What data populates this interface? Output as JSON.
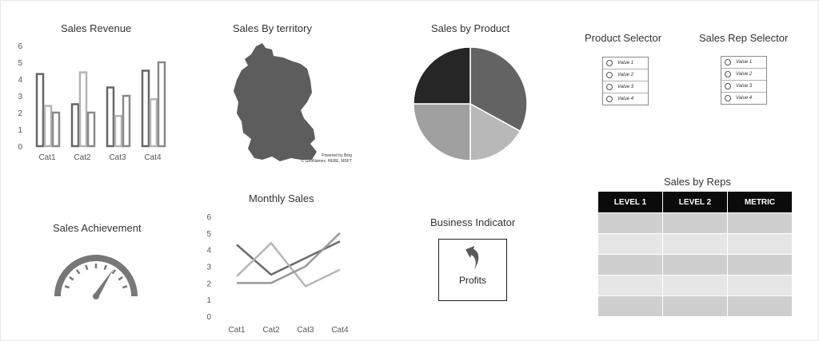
{
  "sales_revenue": {
    "title": "Sales Revenue"
  },
  "sales_by_territory": {
    "title": "Sales By territory",
    "attribution_line1": "Powered by Bing",
    "attribution_line2": "© GeoNames, HERE, MSFT"
  },
  "sales_by_product": {
    "title": "Sales by Product"
  },
  "product_selector": {
    "title": "Product Selector",
    "options": [
      "Value 1",
      "Value 2",
      "Value 3",
      "Value 4"
    ]
  },
  "sales_rep_selector": {
    "title": "Sales Rep Selector",
    "options": [
      "Value 1",
      "Value 2",
      "Value 3",
      "Value 4"
    ]
  },
  "sales_achievement": {
    "title": "Sales Achievement"
  },
  "monthly_sales": {
    "title": "Monthly Sales"
  },
  "business_indicator": {
    "title": "Business Indicator",
    "label": "Profits"
  },
  "sales_by_reps": {
    "title": "Sales by Reps",
    "columns": [
      "LEVEL 1",
      "LEVEL 2",
      "METRIC"
    ],
    "row_count": 5
  },
  "chart_data": [
    {
      "type": "bar",
      "categories": [
        "Cat1",
        "Cat2",
        "Cat3",
        "Cat4"
      ],
      "series": [
        {
          "values": [
            4.3,
            2.5,
            3.5,
            4.5
          ],
          "color": "#666666"
        },
        {
          "values": [
            2.4,
            4.4,
            1.8,
            2.8
          ],
          "color": "#b5b5b5"
        },
        {
          "values": [
            2.0,
            2.0,
            3.0,
            5.0
          ],
          "color": "#8a8a8a"
        }
      ],
      "y_ticks": [
        "0",
        "1",
        "2",
        "3",
        "4",
        "5",
        "6"
      ],
      "ylim": [
        0,
        6
      ]
    },
    {
      "type": "pie",
      "values": [
        33,
        17,
        25,
        25
      ],
      "colors": [
        "#636363",
        "#b8b8b8",
        "#a0a0a0",
        "#262626"
      ]
    },
    {
      "type": "line",
      "categories": [
        "Cat1",
        "Cat2",
        "Cat3",
        "Cat4"
      ],
      "series": [
        {
          "values": [
            4.3,
            2.5,
            3.5,
            4.5
          ],
          "color": "#6a6a6a"
        },
        {
          "values": [
            2.4,
            4.4,
            1.8,
            2.8
          ],
          "color": "#b5b5b5"
        },
        {
          "values": [
            2.0,
            2.0,
            3.0,
            5.0
          ],
          "color": "#999999"
        }
      ],
      "y_ticks": [
        "0",
        "1",
        "2",
        "3",
        "4",
        "5",
        "6"
      ],
      "ylim": [
        0,
        6
      ]
    },
    {
      "type": "gauge",
      "value": 0.68,
      "color": "#777777"
    }
  ]
}
